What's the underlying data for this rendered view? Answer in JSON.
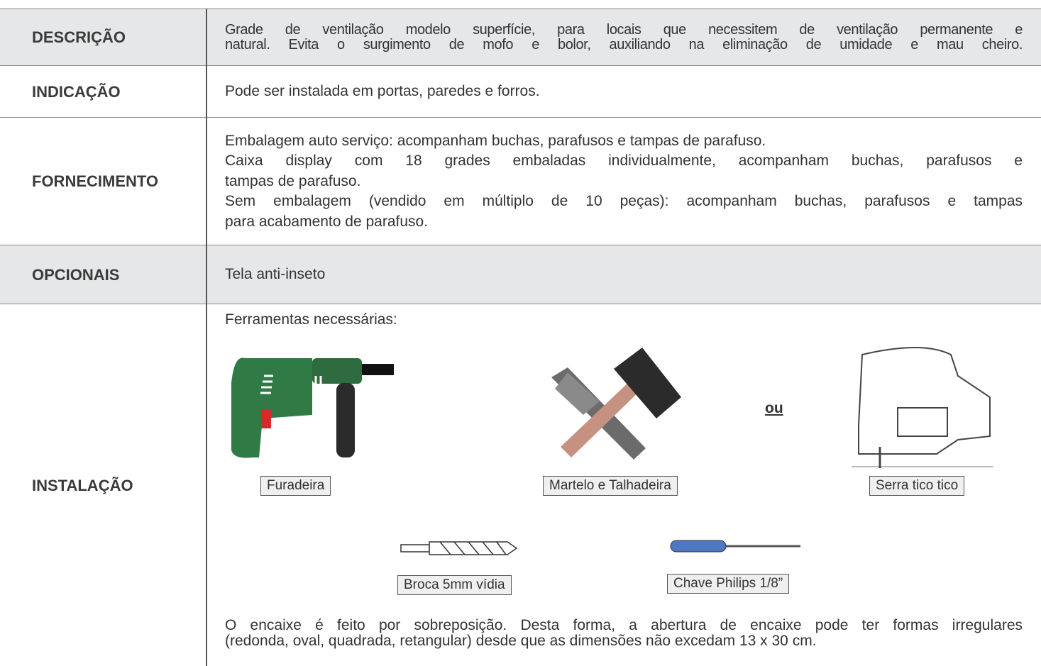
{
  "table": {
    "rows": [
      {
        "label": "DESCRIÇÃO",
        "paragraphs": [
          [
            "Grade de ventilação modelo superfície, para locais que necessitem de ventilação permanente e",
            "natural. Evita o surgimento de  mofo e bolor,  auxiliando na eliminação de umidade e mau cheiro."
          ]
        ]
      },
      {
        "label": "INDICAÇÃO",
        "paragraphs": [
          [
            "Pode ser instalada em portas, paredes e forros."
          ]
        ]
      },
      {
        "label": "FORNECIMENTO",
        "paragraphs": [
          [
            "Embalagem auto serviço: acompanham buchas, parafusos e tampas de parafuso."
          ],
          [
            "Caixa display com 18 grades embaladas individualmente, acompanham buchas, parafusos e",
            "tampas de parafuso."
          ],
          [
            "Sem embalagem (vendido em múltiplo de 10 peças):  acompanham buchas, parafusos e tampas",
            "para acabamento de parafuso."
          ]
        ]
      },
      {
        "label": "OPCIONAIS",
        "paragraphs": [
          [
            "Tela anti-inseto"
          ]
        ]
      },
      {
        "label": "INSTALAÇÃO",
        "intro": "Ferramentas necessárias:",
        "tools": [
          "Furadeira",
          "Martelo e Talhadeira",
          "Serra tico tico",
          "Broca 5mm vídia",
          "Chave Philips 1/8”"
        ],
        "separator": "ou",
        "paragraphs": [
          [
            "O encaixe é feito por sobreposição. Desta forma, a abertura de encaixe pode ter formas irregulares",
            "(redonda, oval, quadrada, retangular) desde que as dimensões não excedam 13 x 30 cm."
          ]
        ]
      }
    ]
  }
}
